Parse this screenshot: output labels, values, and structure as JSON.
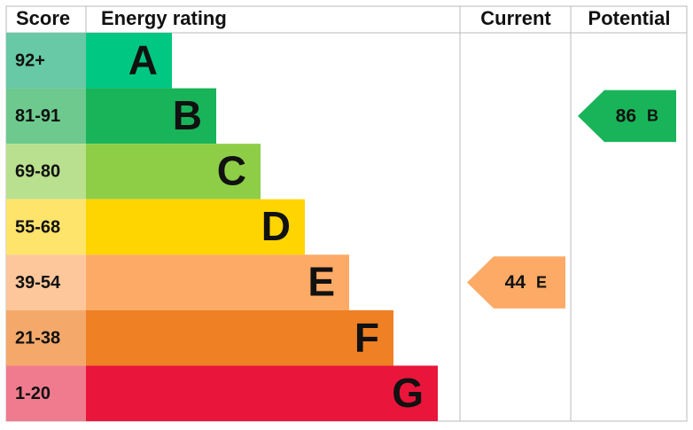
{
  "header": {
    "score": "Score",
    "rating": "Energy rating",
    "current": "Current",
    "potential": "Potential"
  },
  "bands": [
    {
      "score": "92+",
      "letter": "A",
      "color": "#00c781",
      "score_color": "#67c9a5"
    },
    {
      "score": "81-91",
      "letter": "B",
      "color": "#19b459",
      "score_color": "#6dc98e"
    },
    {
      "score": "69-80",
      "letter": "C",
      "color": "#8dce46",
      "score_color": "#b9e08e"
    },
    {
      "score": "55-68",
      "letter": "D",
      "color": "#ffd500",
      "score_color": "#ffe46b"
    },
    {
      "score": "39-54",
      "letter": "E",
      "color": "#fcaa65",
      "score_color": "#fdc79b"
    },
    {
      "score": "21-38",
      "letter": "F",
      "color": "#ef8023",
      "score_color": "#f4a96a"
    },
    {
      "score": "1-20",
      "letter": "G",
      "color": "#e9153b",
      "score_color": "#f07b8f"
    }
  ],
  "current": {
    "value": 44,
    "letter": "E"
  },
  "potential": {
    "value": 86,
    "letter": "B"
  }
}
